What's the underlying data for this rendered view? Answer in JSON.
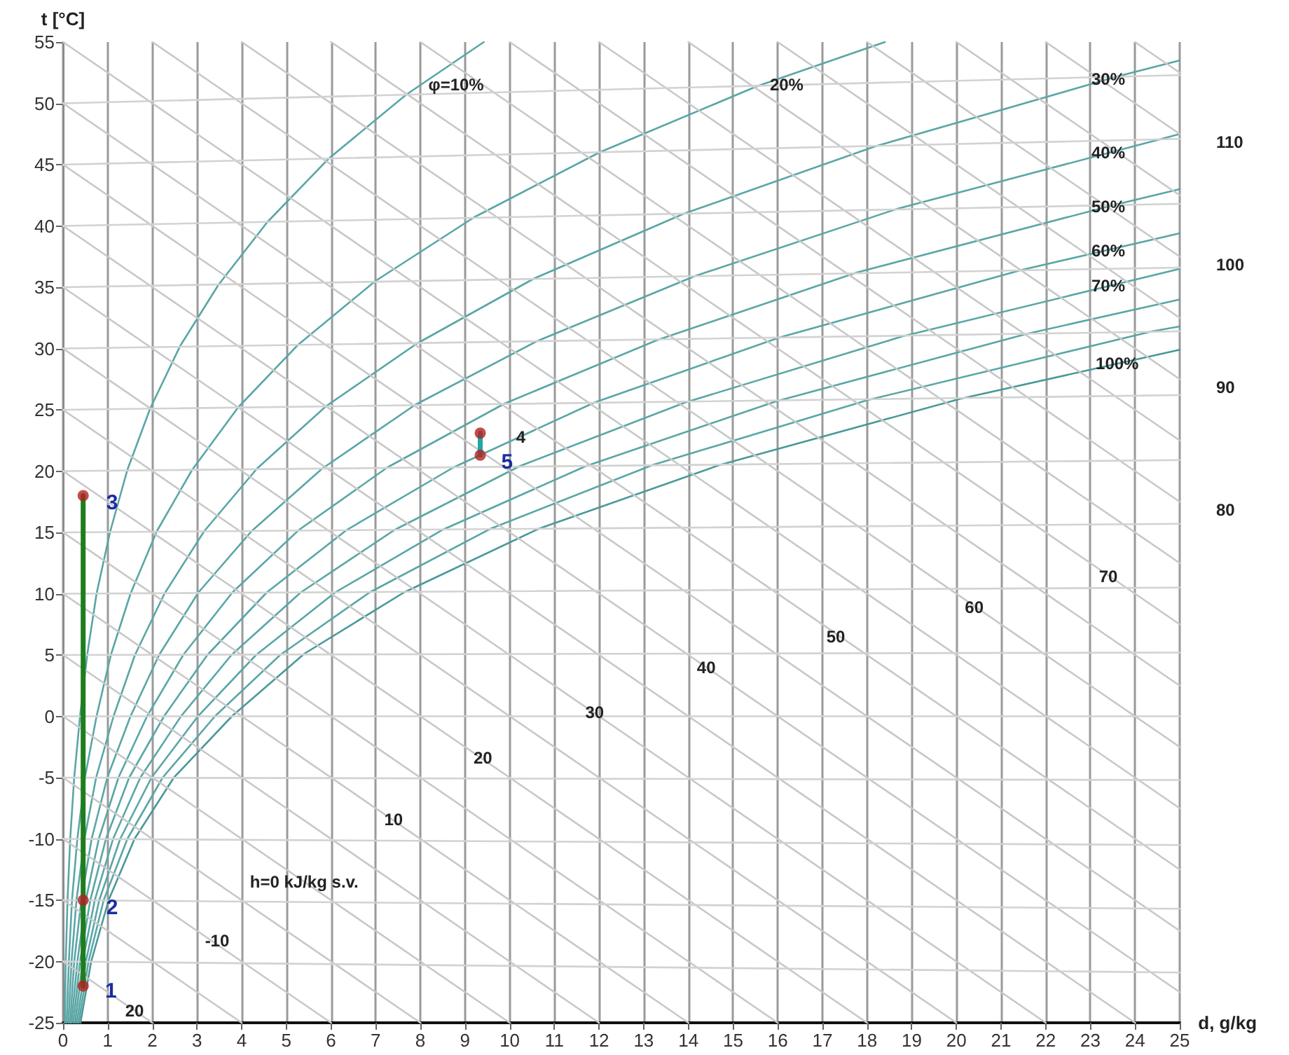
{
  "chart_data": {
    "type": "line",
    "xlabel": "d, g/kg",
    "ylabel": "t [°C]",
    "xlim": [
      0,
      25
    ],
    "ylim": [
      -25,
      55
    ],
    "xticks": [
      0,
      1,
      2,
      3,
      4,
      5,
      6,
      7,
      8,
      9,
      10,
      11,
      12,
      13,
      14,
      15,
      16,
      17,
      18,
      19,
      20,
      21,
      22,
      23,
      24,
      25
    ],
    "yticks": [
      -25,
      -20,
      -15,
      -10,
      -5,
      0,
      5,
      10,
      15,
      20,
      25,
      30,
      35,
      40,
      45,
      50,
      55
    ],
    "grid": "x",
    "marker": "none",
    "line_style": "solid",
    "series": [
      {
        "color": "#5aa6a6",
        "x": [
          0.04,
          0.06,
          0.1,
          0.16,
          0.25,
          0.38,
          0.54,
          0.75,
          1.05,
          1.44,
          1.95,
          2.62,
          3.48,
          4.57,
          5.95,
          7.68,
          9.42
        ],
        "values": [
          -25,
          -20,
          -15,
          -10,
          -5,
          0,
          5,
          10,
          15,
          20.1,
          25.1,
          30.2,
          35.2,
          40.3,
          45.5,
          50.7,
          55
        ]
      },
      {
        "color": "#5aa6a6",
        "x": [
          0.08,
          0.13,
          0.2,
          0.32,
          0.49,
          0.75,
          1.07,
          1.51,
          2.1,
          2.89,
          3.92,
          5.26,
          6.99,
          9.2,
          12.01,
          15.54,
          18.4
        ],
        "values": [
          -25,
          -20,
          -15,
          -10,
          -5,
          0,
          5,
          10,
          15.1,
          20.1,
          25.2,
          30.3,
          35.5,
          40.7,
          46,
          51.4,
          55
        ]
      },
      {
        "color": "#5aa6a6",
        "x": [
          0.12,
          0.19,
          0.3,
          0.48,
          0.74,
          1.13,
          1.61,
          2.27,
          3.16,
          4.34,
          5.89,
          7.92,
          10.54,
          13.9,
          18.19,
          23.61,
          25
        ],
        "values": [
          -25,
          -20,
          -15,
          -10,
          -5,
          0,
          5,
          10,
          15.1,
          20.2,
          25.3,
          30.4,
          35.7,
          41,
          46.5,
          52.2,
          53.5
        ]
      },
      {
        "color": "#5aa6a6",
        "x": [
          0.16,
          0.25,
          0.41,
          0.64,
          0.99,
          1.51,
          2.15,
          3.03,
          4.22,
          5.8,
          7.88,
          10.61,
          14.14,
          18.68,
          24.49,
          25
        ],
        "values": [
          -25,
          -20,
          -15,
          -10,
          -5,
          0,
          5,
          10.1,
          15.1,
          20.2,
          25.4,
          30.6,
          35.9,
          41.4,
          47,
          47.5
        ]
      },
      {
        "color": "#5aa6a6",
        "x": [
          0.19,
          0.32,
          0.51,
          0.8,
          1.24,
          1.88,
          2.69,
          3.79,
          5.28,
          7.26,
          9.88,
          13.31,
          17.77,
          23.52,
          25
        ],
        "values": [
          -25,
          -20,
          -15,
          -10,
          -5,
          0,
          5,
          10.1,
          15.2,
          20.3,
          25.5,
          30.7,
          36.2,
          41.7,
          43
        ]
      },
      {
        "color": "#5aa6a6",
        "x": [
          0.23,
          0.38,
          0.61,
          0.96,
          1.48,
          2.26,
          3.23,
          4.56,
          6.35,
          8.74,
          11.9,
          16.04,
          21.45,
          25
        ],
        "values": [
          -25,
          -20,
          -15,
          -10,
          -5,
          0,
          5,
          10.1,
          15.2,
          20.3,
          25.6,
          30.9,
          36.4,
          39.4
        ]
      },
      {
        "color": "#5aa6a6",
        "x": [
          0.27,
          0.44,
          0.71,
          1.12,
          1.73,
          2.64,
          3.77,
          5.32,
          7.42,
          10.22,
          13.93,
          18.8,
          25
        ],
        "values": [
          -25,
          -20,
          -15,
          -10,
          -5,
          0,
          5,
          10.1,
          15.2,
          20.4,
          25.6,
          31,
          36.5
        ]
      },
      {
        "color": "#5aa6a6",
        "x": [
          0.31,
          0.51,
          0.81,
          1.28,
          1.98,
          3.02,
          4.32,
          6.09,
          8.49,
          11.7,
          15.97,
          21.58,
          25
        ],
        "values": [
          -25,
          -20,
          -15,
          -10,
          -5,
          0,
          5,
          10.1,
          15.2,
          20.4,
          25.7,
          31.2,
          34
        ]
      },
      {
        "color": "#5aa6a6",
        "x": [
          0.35,
          0.57,
          0.91,
          1.44,
          2.23,
          3.4,
          4.86,
          6.86,
          9.57,
          13.2,
          18.02,
          24.38,
          25
        ],
        "values": [
          -25,
          -20,
          -15,
          -10,
          -5,
          0,
          5,
          10.1,
          15.3,
          20.5,
          25.8,
          31.4,
          31.8
        ]
      },
      {
        "color": "#4a9999",
        "x": [
          0.39,
          0.63,
          1.02,
          1.6,
          2.48,
          3.78,
          5.4,
          7.63,
          10.65,
          14.7,
          20.09,
          25
        ],
        "values": [
          -25,
          -20,
          -15,
          -10,
          -5,
          0,
          5.1,
          10.1,
          15.3,
          20.5,
          25.9,
          29.9
        ]
      },
      {
        "color": "#c8c8c8",
        "x": [
          0,
          2
        ],
        "values": [
          -20,
          -25
        ]
      },
      {
        "color": "#c8c8c8",
        "x": [
          0,
          4
        ],
        "values": [
          -15,
          -25
        ]
      },
      {
        "color": "#c8c8c8",
        "x": [
          0,
          6
        ],
        "values": [
          -10,
          -25
        ]
      },
      {
        "color": "#c8c8c8",
        "x": [
          0,
          8
        ],
        "values": [
          -5,
          -25
        ]
      },
      {
        "color": "#c8c8c8",
        "x": [
          0,
          10
        ],
        "values": [
          0,
          -25
        ]
      },
      {
        "color": "#c8c8c8",
        "x": [
          0,
          12
        ],
        "values": [
          5,
          -25
        ]
      },
      {
        "color": "#c8c8c8",
        "x": [
          0,
          14
        ],
        "values": [
          10,
          -25
        ]
      },
      {
        "color": "#c8c8c8",
        "x": [
          0,
          16
        ],
        "values": [
          15,
          -25
        ]
      },
      {
        "color": "#c8c8c8",
        "x": [
          0,
          18
        ],
        "values": [
          20,
          -25
        ]
      },
      {
        "color": "#c8c8c8",
        "x": [
          0,
          20
        ],
        "values": [
          25,
          -25
        ]
      },
      {
        "color": "#c8c8c8",
        "x": [
          0,
          22
        ],
        "values": [
          30,
          -25
        ]
      },
      {
        "color": "#c8c8c8",
        "x": [
          0,
          24
        ],
        "values": [
          35,
          -25
        ]
      },
      {
        "color": "#c8c8c8",
        "x": [
          0,
          25
        ],
        "values": [
          40,
          -22.5
        ]
      },
      {
        "color": "#c8c8c8",
        "x": [
          0,
          25
        ],
        "values": [
          45,
          -17.5
        ]
      },
      {
        "color": "#c8c8c8",
        "x": [
          0,
          25
        ],
        "values": [
          50,
          -12.5
        ]
      },
      {
        "color": "#c8c8c8",
        "x": [
          0,
          25
        ],
        "values": [
          55,
          -7.5
        ]
      },
      {
        "color": "#c8c8c8",
        "x": [
          2,
          25
        ],
        "values": [
          55,
          -2.5
        ]
      },
      {
        "color": "#c8c8c8",
        "x": [
          4,
          25
        ],
        "values": [
          55,
          2.5
        ]
      },
      {
        "color": "#c8c8c8",
        "x": [
          6,
          25
        ],
        "values": [
          55,
          7.5
        ]
      },
      {
        "color": "#c8c8c8",
        "x": [
          8,
          25
        ],
        "values": [
          55,
          12.5
        ]
      },
      {
        "color": "#c8c8c8",
        "x": [
          10,
          25
        ],
        "values": [
          55,
          17.5
        ]
      },
      {
        "color": "#c8c8c8",
        "x": [
          12,
          25
        ],
        "values": [
          55,
          22.5
        ]
      },
      {
        "color": "#c8c8c8",
        "x": [
          14,
          25
        ],
        "values": [
          55,
          27.5
        ]
      },
      {
        "color": "#c8c8c8",
        "x": [
          16,
          25
        ],
        "values": [
          55,
          32.5
        ]
      },
      {
        "color": "#c8c8c8",
        "x": [
          18,
          25
        ],
        "values": [
          55,
          37.5
        ]
      },
      {
        "color": "#c8c8c8",
        "x": [
          20,
          25
        ],
        "values": [
          55,
          42.5
        ]
      },
      {
        "color": "#c8c8c8",
        "x": [
          22,
          25
        ],
        "values": [
          55,
          47.5
        ]
      },
      {
        "color": "#c8c8c8",
        "x": [
          24,
          25
        ],
        "values": [
          55,
          52.5
        ]
      },
      {
        "color": "#d2d2d2",
        "x": [
          0,
          25
        ],
        "values": [
          50,
          52.3
        ]
      },
      {
        "color": "#d2d2d2",
        "x": [
          0,
          25
        ],
        "values": [
          45,
          47.1
        ]
      },
      {
        "color": "#d2d2d2",
        "x": [
          0,
          25
        ],
        "values": [
          40,
          41.8
        ]
      },
      {
        "color": "#d2d2d2",
        "x": [
          0,
          25
        ],
        "values": [
          35,
          36.6
        ]
      },
      {
        "color": "#d2d2d2",
        "x": [
          0,
          25
        ],
        "values": [
          30,
          31.4
        ]
      },
      {
        "color": "#d2d2d2",
        "x": [
          0,
          25
        ],
        "values": [
          25,
          26.2
        ]
      },
      {
        "color": "#d2d2d2",
        "x": [
          0,
          25
        ],
        "values": [
          20,
          20.9
        ]
      },
      {
        "color": "#d2d2d2",
        "x": [
          0,
          25
        ],
        "values": [
          15,
          15.7
        ]
      },
      {
        "color": "#d2d2d2",
        "x": [
          0,
          25
        ],
        "values": [
          10,
          10.5
        ]
      },
      {
        "color": "#d2d2d2",
        "x": [
          0,
          25
        ],
        "values": [
          5,
          5.2
        ]
      },
      {
        "color": "#d2d2d2",
        "x": [
          0,
          25
        ],
        "values": [
          0,
          0
        ]
      },
      {
        "color": "#d2d2d2",
        "x": [
          0,
          25
        ],
        "values": [
          -5,
          -5.2
        ]
      },
      {
        "color": "#d2d2d2",
        "x": [
          0,
          25
        ],
        "values": [
          -10,
          -10.5
        ]
      },
      {
        "color": "#d2d2d2",
        "x": [
          0,
          25
        ],
        "values": [
          -15,
          -15.7
        ]
      },
      {
        "color": "#d2d2d2",
        "x": [
          0,
          25
        ],
        "values": [
          -20,
          -20.9
        ]
      },
      {
        "color": "#1e7d1e",
        "x": [
          0.45,
          0.45
        ],
        "values": [
          -22,
          18
        ]
      },
      {
        "color": "#20a8a8",
        "x": [
          9.34,
          9.34
        ],
        "values": [
          21.3,
          23.1
        ]
      },
      {
        "type": "scatter",
        "marker": "circle",
        "color": "#b22222",
        "x": [
          0.45,
          0.45,
          0.45,
          9.34,
          9.34
        ],
        "values": [
          -22,
          -15,
          18,
          23.1,
          21.3
        ]
      }
    ],
    "annotations": [
      {
        "text": "φ=10%",
        "x": 8.8,
        "y": 51.5
      },
      {
        "text": "20%",
        "x": 16.2,
        "y": 51.5
      },
      {
        "text": "30%",
        "x": 23.4,
        "y": 52
      },
      {
        "text": "40%",
        "x": 23.4,
        "y": 46
      },
      {
        "text": "50%",
        "x": 23.4,
        "y": 41.6
      },
      {
        "text": "60%",
        "x": 23.4,
        "y": 38
      },
      {
        "text": "70%",
        "x": 23.4,
        "y": 35.1
      },
      {
        "text": "100%",
        "x": 23.6,
        "y": 28.8
      },
      {
        "text": "1",
        "x": 1.07,
        "y": -22.4
      },
      {
        "text": "20",
        "x": 1.6,
        "y": -24
      },
      {
        "text": "2",
        "x": 1.1,
        "y": -15.6
      },
      {
        "text": "3",
        "x": 1.1,
        "y": 17.4
      },
      {
        "text": "4",
        "x": 10.25,
        "y": 22.8
      },
      {
        "text": "5",
        "x": 9.94,
        "y": 20.7
      },
      {
        "text": "-10",
        "x": 3.45,
        "y": -18.3
      },
      {
        "text": "h=0 kJ/kg s.v.",
        "x": 5.4,
        "y": -13.5
      },
      {
        "text": "10",
        "x": 7.4,
        "y": -8.4
      },
      {
        "text": "20",
        "x": 9.4,
        "y": -3.4
      },
      {
        "text": "30",
        "x": 11.9,
        "y": 0.3
      },
      {
        "text": "40",
        "x": 14.4,
        "y": 4
      },
      {
        "text": "50",
        "x": 17.3,
        "y": 6.5
      },
      {
        "text": "60",
        "x": 20.4,
        "y": 8.9
      },
      {
        "text": "70",
        "x": 23.4,
        "y": 11.4
      },
      {
        "text": "80",
        "x": 25,
        "y": 17.5
      },
      {
        "text": "90",
        "x": 25,
        "y": 27.5
      },
      {
        "text": "100",
        "x": 25,
        "y": 37.5
      },
      {
        "text": "110",
        "x": 25,
        "y": 47.5
      }
    ]
  }
}
